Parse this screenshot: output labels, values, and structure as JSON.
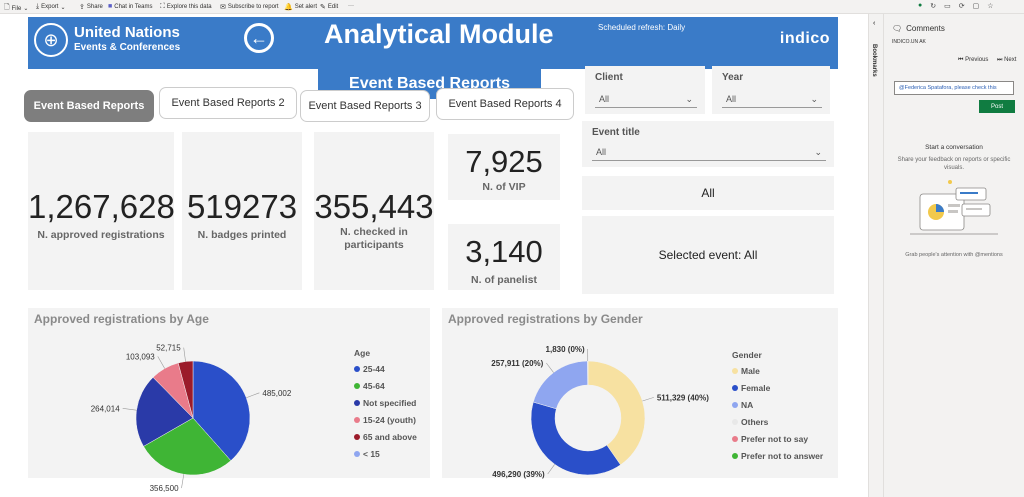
{
  "toolbar": {
    "file": "File",
    "export": "Export",
    "share": "Share",
    "chat": "Chat in Teams",
    "explore": "Explore this data",
    "subscribe": "Subscribe to report",
    "alert": "Set alert",
    "edit": "Edit",
    "more": "···"
  },
  "header": {
    "org_name": "United Nations",
    "org_sub": "Events & Conferences",
    "title": "Analytical Module",
    "refresh": "Scheduled refresh: Daily",
    "brand": "indico",
    "subtitle": "Event Based Reports"
  },
  "tabs": [
    {
      "label": "Event Based Reports"
    },
    {
      "label": "Event Based Reports 2"
    },
    {
      "label": "Event Based Reports 3"
    },
    {
      "label": "Event Based Reports 4"
    }
  ],
  "kpis": {
    "approved": {
      "value": "1,267,628",
      "label": "N. approved registrations"
    },
    "badges": {
      "value": "519273",
      "label": "N. badges printed"
    },
    "checked": {
      "value": "355,443",
      "label": "N. checked in participants"
    },
    "vip": {
      "value": "7,925",
      "label": "N. of VIP"
    },
    "panelist": {
      "value": "3,140",
      "label": "N. of panelist"
    }
  },
  "filters": {
    "client": {
      "label": "Client",
      "value": "All"
    },
    "year": {
      "label": "Year",
      "value": "All"
    },
    "event_title": {
      "label": "Event title",
      "value": "All"
    },
    "all_card": "All",
    "selected_event": "Selected event: All"
  },
  "chart_data": [
    {
      "type": "pie",
      "title": "Approved registrations by Age",
      "legend_title": "Age",
      "legend_position": "right",
      "slices": [
        {
          "name": "25-44",
          "value": 485002,
          "label": "485,002",
          "color": "#2a4fc9"
        },
        {
          "name": "45-64",
          "value": 356500,
          "label": "356,500",
          "color": "#3fb535"
        },
        {
          "name": "Not specified",
          "value": 264014,
          "label": "264,014",
          "color": "#2a3aa8"
        },
        {
          "name": "15-24 (youth)",
          "value": 103093,
          "label": "103,093",
          "color": "#e97b8a"
        },
        {
          "name": "65 and above",
          "value": 52715,
          "label": "52,715",
          "color": "#9b1b2a"
        },
        {
          "name": "< 15",
          "value": 0,
          "label": "",
          "color": "#8fa6f0"
        }
      ]
    },
    {
      "type": "donut",
      "title": "Approved registrations by Gender",
      "legend_title": "Gender",
      "legend_position": "right",
      "slices": [
        {
          "name": "Male",
          "value": 511329,
          "label": "511,329 (40%)",
          "color": "#f7e1a1"
        },
        {
          "name": "Female",
          "value": 496290,
          "label": "496,290 (39%)",
          "color": "#2a4fc9"
        },
        {
          "name": "NA",
          "value": 257911,
          "label": "257,911 (20%)",
          "color": "#8fa6f0"
        },
        {
          "name": "Others",
          "value": 1830,
          "label": "1,830 (0%)",
          "color": "#e8e8e8"
        },
        {
          "name": "Prefer not to say",
          "value": 0,
          "label": "",
          "color": "#e97b8a"
        },
        {
          "name": "Prefer not to answer",
          "value": 0,
          "label": "",
          "color": "#3fb535"
        }
      ]
    }
  ],
  "side": {
    "bookmarks": "Bookmarks"
  },
  "comments": {
    "title": "Comments",
    "context": "INDICO.UN AK",
    "previous": "Previous",
    "next": "Next",
    "input_value": "@Federica Spatafora, please check this",
    "post": "Post",
    "start": "Start a conversation",
    "share": "Share your feedback on reports or specific visuals.",
    "grab": "Grab people's attention with @mentions"
  },
  "colors": {
    "banner": "#3a7bc8",
    "tab_active": "#7e7e7e",
    "card": "#f3f3f3",
    "post": "#107c41"
  }
}
